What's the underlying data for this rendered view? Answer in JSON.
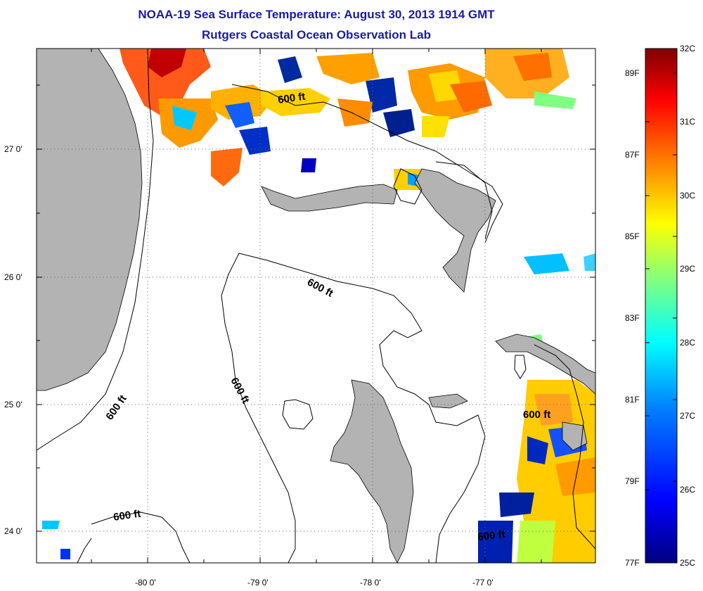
{
  "header": {
    "title": "NOAA-19 Sea Surface Temperature:  August 30, 2013 1914 GMT",
    "subtitle": "Rutgers Coastal Ocean Observation Lab"
  },
  "axes": {
    "longitude_ticks": [
      "-80 0'",
      "-79 0'",
      "-78 0'",
      "-77 0'"
    ],
    "latitude_ticks": [
      "27 0'",
      "26 0'",
      "25 0'",
      "24 0'"
    ]
  },
  "contour_labels": [
    "600 ft",
    "600 ft",
    "600 ft",
    "600 ft",
    "600 ft",
    "600 ft"
  ],
  "colorbar": {
    "celsius_ticks": [
      "32C",
      "31C",
      "30C",
      "29C",
      "28C",
      "27C",
      "26C",
      "25C"
    ],
    "fahrenheit_ticks": [
      "89F",
      "87F",
      "85F",
      "83F",
      "81F",
      "79F",
      "77F"
    ],
    "colors": [
      "#7f0000",
      "#ff0000",
      "#ff8000",
      "#ffff00",
      "#80ff80",
      "#00ffff",
      "#0080ff",
      "#0000ff",
      "#00007f"
    ]
  },
  "colors": {
    "title": "#1a1aa8",
    "land": "#b3b3b3",
    "grid": "#666666"
  }
}
